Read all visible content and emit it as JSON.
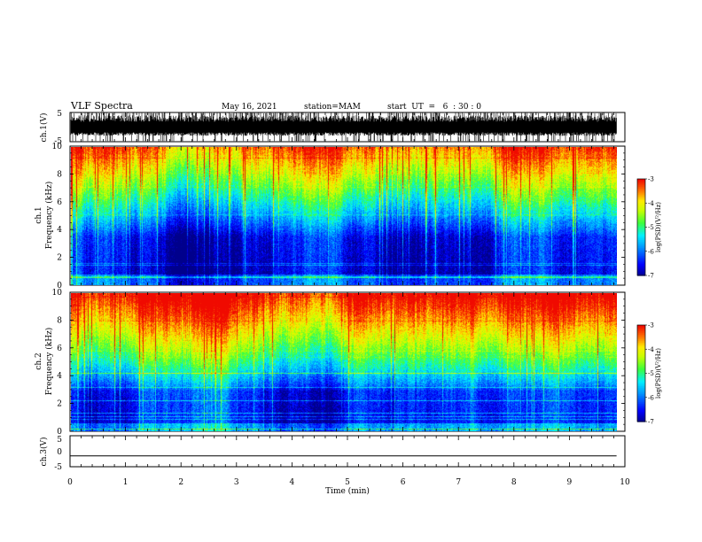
{
  "header": {
    "title": "VLF Spectra",
    "date": "May 16, 2021",
    "station": "station=MAM",
    "start": "start  UT  =   6  : 30 : 0"
  },
  "colors": {
    "low": "#00008f",
    "mid_low": "#0044ff",
    "mid": "#00e8ff",
    "mid_high": "#33ff33",
    "high": "#ffee00",
    "top": "#ff2000"
  },
  "chart_data": [
    {
      "id": "ch1-waveform",
      "type": "line",
      "ylabel": "ch.1(V)",
      "ylim": [
        -5,
        5
      ],
      "yticks": [
        "5",
        "-5"
      ],
      "description_values": {
        "envelope_top": 5,
        "envelope_bottom": -5,
        "dense_band_low": -3,
        "dense_band_high": 4
      }
    },
    {
      "id": "ch1-spectrogram",
      "type": "heatmap",
      "ylabel_line1": "ch.1",
      "ylabel_line2": "Frequency (kHz)",
      "ylim": [
        0,
        10
      ],
      "yticks": [
        "0",
        "2",
        "4",
        "6",
        "8",
        "10"
      ],
      "colorbar": {
        "label": "log(PSD)(V²/Hz)",
        "range": [
          -7,
          -3
        ],
        "ticks": [
          "-3",
          "-4",
          "-5",
          "-6",
          "-7"
        ]
      },
      "xlim": [
        0,
        9.85
      ]
    },
    {
      "id": "ch2-spectrogram",
      "type": "heatmap",
      "ylabel_line1": "ch.2",
      "ylabel_line2": "Frequency (kHz)",
      "ylim": [
        0,
        10
      ],
      "yticks": [
        "0",
        "2",
        "4",
        "6",
        "8",
        "10"
      ],
      "colorbar": {
        "label": "log(PSD)(V²/Hz)",
        "range": [
          -7,
          -3
        ],
        "ticks": [
          "-3",
          "-4",
          "-5",
          "-6",
          "-7"
        ]
      },
      "xlim": [
        0,
        9.85
      ]
    },
    {
      "id": "ch3-waveform",
      "type": "line",
      "ylabel": "ch.3(V)",
      "ylim": [
        -5,
        5
      ],
      "yticks": [
        "5",
        "0",
        "-5"
      ],
      "values_constant": -1.5
    }
  ],
  "xaxis": {
    "label": "Time (min)",
    "range": [
      0,
      10
    ],
    "ticks": [
      "0",
      "1",
      "2",
      "3",
      "4",
      "5",
      "6",
      "7",
      "8",
      "9",
      "10"
    ]
  }
}
